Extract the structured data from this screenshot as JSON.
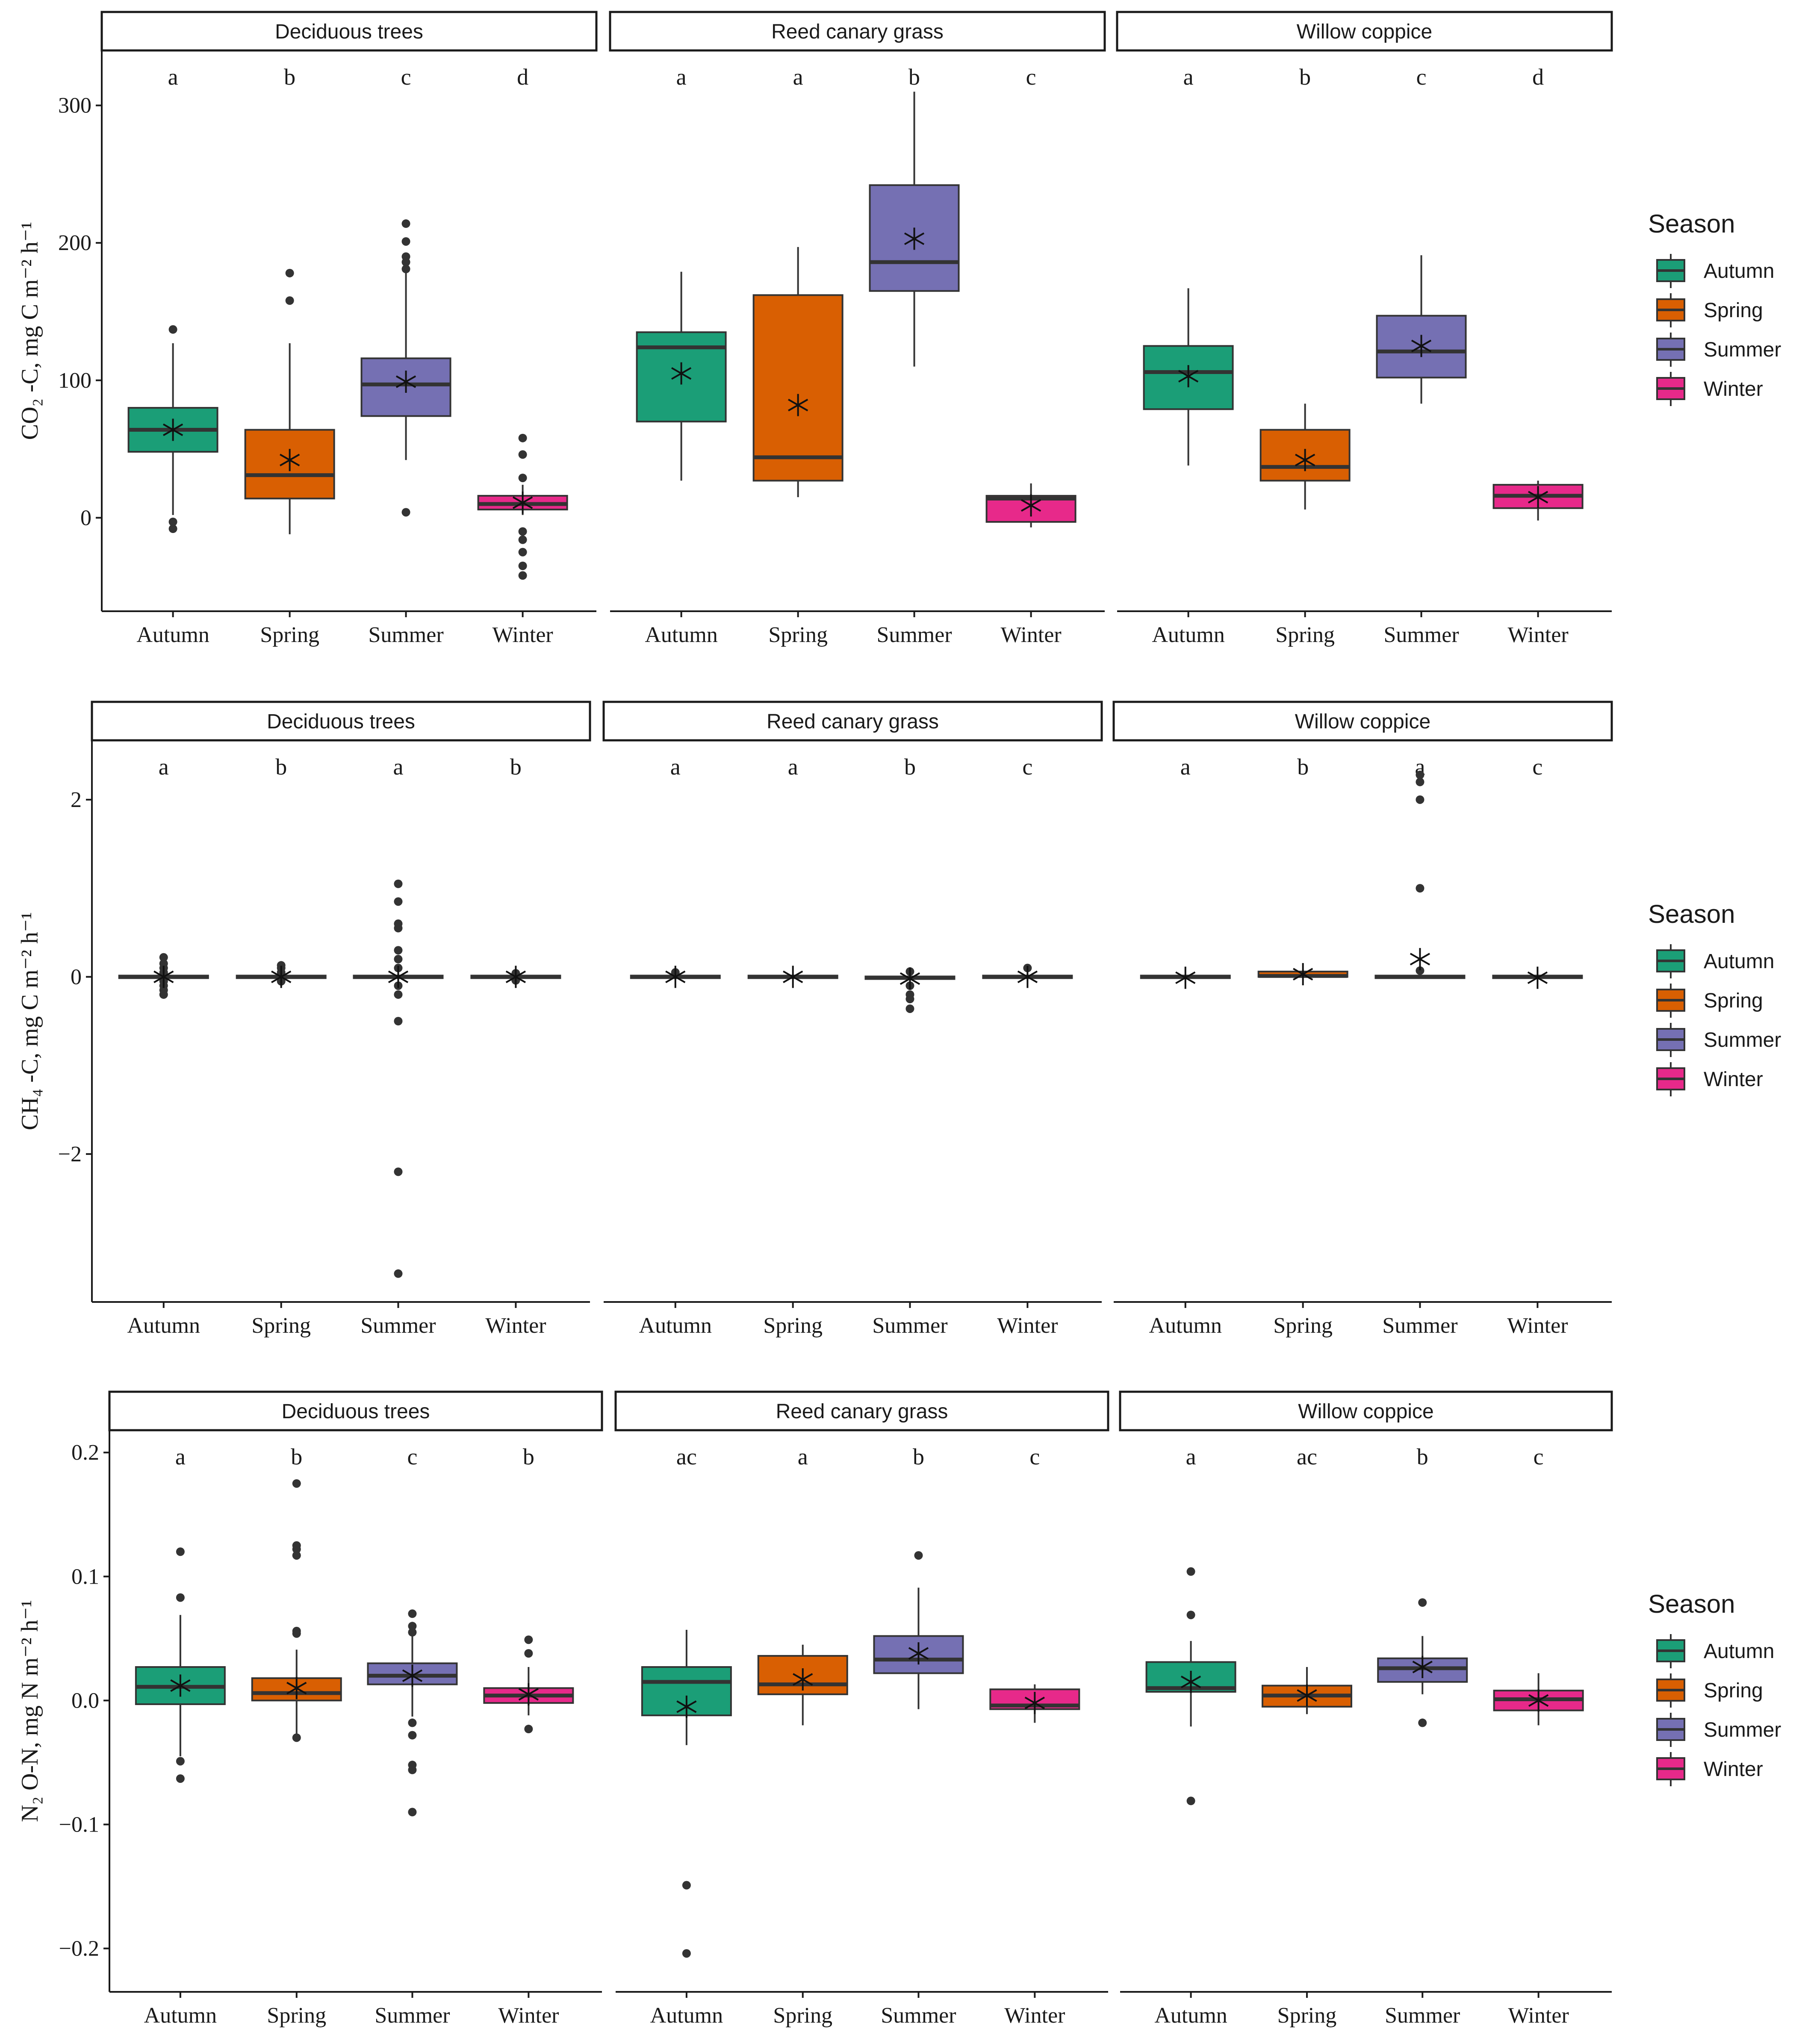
{
  "chart_data": [
    {
      "type": "box",
      "ylabel": "CO₂ -C, mg C m⁻² h⁻¹",
      "ylim": [
        -68,
        340
      ],
      "yticks": [
        0,
        100,
        200,
        300
      ],
      "ytick_labels": [
        "0",
        "100",
        "200",
        "300"
      ],
      "categories": [
        "Autumn",
        "Spring",
        "Summer",
        "Winter"
      ],
      "panels": [
        {
          "title": "Deciduous trees",
          "letters": [
            "a",
            "b",
            "c",
            "d"
          ],
          "boxes": [
            {
              "season": "Autumn",
              "q1": 48,
              "median": 64,
              "q3": 80,
              "whisker_low": 2,
              "whisker_high": 127,
              "mean": 64,
              "outliers": [
                -3,
                -8,
                137
              ]
            },
            {
              "season": "Spring",
              "q1": 14,
              "median": 31,
              "q3": 64,
              "whisker_low": -12,
              "whisker_high": 127,
              "mean": 42,
              "outliers": [
                158,
                178
              ]
            },
            {
              "season": "Summer",
              "q1": 74,
              "median": 97,
              "q3": 116,
              "whisker_low": 42,
              "whisker_high": 178,
              "mean": 99,
              "outliers": [
                4,
                181,
                186,
                190,
                201,
                214
              ]
            },
            {
              "season": "Winter",
              "q1": 6,
              "median": 10,
              "q3": 16,
              "whisker_low": 2,
              "whisker_high": 24,
              "mean": 11,
              "outliers": [
                -10,
                -16,
                -25,
                -35,
                -42,
                29,
                46,
                58
              ]
            }
          ]
        },
        {
          "title": "Reed canary grass",
          "letters": [
            "a",
            "a",
            "b",
            "c"
          ],
          "boxes": [
            {
              "season": "Autumn",
              "q1": 70,
              "median": 124,
              "q3": 135,
              "whisker_low": 27,
              "whisker_high": 179,
              "mean": 105,
              "outliers": []
            },
            {
              "season": "Spring",
              "q1": 27,
              "median": 44,
              "q3": 162,
              "whisker_low": 15,
              "whisker_high": 197,
              "mean": 82,
              "outliers": []
            },
            {
              "season": "Summer",
              "q1": 165,
              "median": 186,
              "q3": 242,
              "whisker_low": 110,
              "whisker_high": 310,
              "mean": 203,
              "outliers": []
            },
            {
              "season": "Winter",
              "q1": -3,
              "median": 14,
              "q3": 16,
              "whisker_low": -7,
              "whisker_high": 25,
              "mean": 9,
              "outliers": []
            }
          ]
        },
        {
          "title": "Willow coppice",
          "letters": [
            "a",
            "b",
            "c",
            "d"
          ],
          "boxes": [
            {
              "season": "Autumn",
              "q1": 79,
              "median": 106,
              "q3": 125,
              "whisker_low": 38,
              "whisker_high": 167,
              "mean": 103,
              "outliers": []
            },
            {
              "season": "Spring",
              "q1": 27,
              "median": 37,
              "q3": 64,
              "whisker_low": 6,
              "whisker_high": 83,
              "mean": 42,
              "outliers": []
            },
            {
              "season": "Summer",
              "q1": 102,
              "median": 121,
              "q3": 147,
              "whisker_low": 83,
              "whisker_high": 191,
              "mean": 125,
              "outliers": []
            },
            {
              "season": "Winter",
              "q1": 7,
              "median": 16,
              "q3": 24,
              "whisker_low": -2,
              "whisker_high": 27,
              "mean": 15,
              "outliers": []
            }
          ]
        }
      ]
    },
    {
      "type": "box",
      "ylabel": "CH₄ -C, mg C m⁻² h⁻¹",
      "ylim": [
        -3.67,
        2.67
      ],
      "yticks": [
        -2,
        0,
        2
      ],
      "ytick_labels": [
        "−2",
        "0",
        "2"
      ],
      "categories": [
        "Autumn",
        "Spring",
        "Summer",
        "Winter"
      ],
      "panels": [
        {
          "title": "Deciduous trees",
          "letters": [
            "a",
            "b",
            "a",
            "b"
          ],
          "boxes": [
            {
              "season": "Autumn",
              "q1": -0.01,
              "median": 0.0,
              "q3": 0.01,
              "whisker_low": -0.03,
              "whisker_high": 0.03,
              "mean": 0.0,
              "outliers": [
                -0.05,
                -0.1,
                -0.15,
                -0.2,
                0.05,
                0.1,
                0.15,
                0.22
              ]
            },
            {
              "season": "Spring",
              "q1": -0.01,
              "median": 0.0,
              "q3": 0.01,
              "whisker_low": -0.02,
              "whisker_high": 0.02,
              "mean": 0.0,
              "outliers": [
                -0.05,
                0.05,
                0.1,
                0.13
              ]
            },
            {
              "season": "Summer",
              "q1": -0.01,
              "median": 0.0,
              "q3": 0.01,
              "whisker_low": -0.03,
              "whisker_high": 0.03,
              "mean": 0.0,
              "outliers": [
                -0.1,
                -0.2,
                -0.5,
                -2.2,
                -3.35,
                0.1,
                0.2,
                0.3,
                0.55,
                0.6,
                0.85,
                1.05
              ]
            },
            {
              "season": "Winter",
              "q1": -0.01,
              "median": 0.0,
              "q3": 0.01,
              "whisker_low": -0.02,
              "whisker_high": 0.02,
              "mean": 0.0,
              "outliers": [
                -0.04,
                0.04
              ]
            }
          ]
        },
        {
          "title": "Reed canary grass",
          "letters": [
            "a",
            "a",
            "b",
            "c"
          ],
          "boxes": [
            {
              "season": "Autumn",
              "q1": -0.01,
              "median": 0.0,
              "q3": 0.01,
              "whisker_low": -0.02,
              "whisker_high": 0.02,
              "mean": 0.0,
              "outliers": [
                0.05
              ]
            },
            {
              "season": "Spring",
              "q1": -0.01,
              "median": 0.0,
              "q3": 0.01,
              "whisker_low": -0.02,
              "whisker_high": 0.02,
              "mean": 0.0,
              "outliers": []
            },
            {
              "season": "Summer",
              "q1": -0.02,
              "median": -0.01,
              "q3": 0.0,
              "whisker_low": -0.04,
              "whisker_high": 0.02,
              "mean": -0.02,
              "outliers": [
                -0.1,
                -0.2,
                -0.25,
                -0.36,
                0.06
              ]
            },
            {
              "season": "Winter",
              "q1": -0.01,
              "median": 0.0,
              "q3": 0.01,
              "whisker_low": -0.02,
              "whisker_high": 0.02,
              "mean": 0.0,
              "outliers": [
                0.1
              ]
            }
          ]
        },
        {
          "title": "Willow coppice",
          "letters": [
            "a",
            "b",
            "a",
            "c"
          ],
          "boxes": [
            {
              "season": "Autumn",
              "q1": -0.01,
              "median": 0.0,
              "q3": 0.01,
              "whisker_low": -0.02,
              "whisker_high": 0.02,
              "mean": -0.01,
              "outliers": []
            },
            {
              "season": "Spring",
              "q1": 0.0,
              "median": 0.01,
              "q3": 0.06,
              "whisker_low": -0.01,
              "whisker_high": 0.08,
              "mean": 0.03,
              "outliers": []
            },
            {
              "season": "Summer",
              "q1": -0.01,
              "median": 0.0,
              "q3": 0.01,
              "whisker_low": -0.02,
              "whisker_high": 0.02,
              "mean": 0.2,
              "outliers": [
                0.07,
                1.0,
                2.0,
                2.2,
                2.28
              ]
            },
            {
              "season": "Winter",
              "q1": -0.01,
              "median": 0.0,
              "q3": 0.01,
              "whisker_low": -0.02,
              "whisker_high": 0.02,
              "mean": -0.01,
              "outliers": []
            }
          ]
        }
      ]
    },
    {
      "type": "box",
      "ylabel": "N₂ O-N, mg N m⁻² h⁻¹",
      "ylim": [
        -0.235,
        0.218
      ],
      "yticks": [
        -0.2,
        -0.1,
        0.0,
        0.1,
        0.2
      ],
      "ytick_labels": [
        "−0.2",
        "−0.1",
        "0.0",
        "0.1",
        "0.2"
      ],
      "categories": [
        "Autumn",
        "Spring",
        "Summer",
        "Winter"
      ],
      "panels": [
        {
          "title": "Deciduous trees",
          "letters": [
            "a",
            "b",
            "c",
            "b"
          ],
          "boxes": [
            {
              "season": "Autumn",
              "q1": -0.003,
              "median": 0.011,
              "q3": 0.027,
              "whisker_low": -0.045,
              "whisker_high": 0.069,
              "mean": 0.012,
              "outliers": [
                -0.049,
                -0.063,
                0.083,
                0.12
              ]
            },
            {
              "season": "Spring",
              "q1": 0.0,
              "median": 0.006,
              "q3": 0.018,
              "whisker_low": -0.027,
              "whisker_high": 0.041,
              "mean": 0.01,
              "outliers": [
                -0.03,
                0.054,
                0.056,
                0.117,
                0.122,
                0.125,
                0.175
              ]
            },
            {
              "season": "Summer",
              "q1": 0.013,
              "median": 0.02,
              "q3": 0.03,
              "whisker_low": -0.013,
              "whisker_high": 0.053,
              "mean": 0.02,
              "outliers": [
                -0.018,
                -0.028,
                -0.052,
                -0.056,
                -0.09,
                0.055,
                0.06,
                0.07
              ]
            },
            {
              "season": "Winter",
              "q1": -0.002,
              "median": 0.004,
              "q3": 0.01,
              "whisker_low": -0.012,
              "whisker_high": 0.027,
              "mean": 0.005,
              "outliers": [
                -0.023,
                0.038,
                0.049
              ]
            }
          ]
        },
        {
          "title": "Reed canary grass",
          "letters": [
            "ac",
            "a",
            "b",
            "c"
          ],
          "boxes": [
            {
              "season": "Autumn",
              "q1": -0.012,
              "median": 0.015,
              "q3": 0.027,
              "whisker_low": -0.036,
              "whisker_high": 0.057,
              "mean": -0.005,
              "outliers": [
                -0.149,
                -0.204
              ]
            },
            {
              "season": "Spring",
              "q1": 0.005,
              "median": 0.013,
              "q3": 0.036,
              "whisker_low": -0.02,
              "whisker_high": 0.045,
              "mean": 0.017,
              "outliers": []
            },
            {
              "season": "Summer",
              "q1": 0.022,
              "median": 0.033,
              "q3": 0.052,
              "whisker_low": -0.007,
              "whisker_high": 0.091,
              "mean": 0.038,
              "outliers": [
                0.117
              ]
            },
            {
              "season": "Winter",
              "q1": -0.007,
              "median": -0.004,
              "q3": 0.009,
              "whisker_low": -0.018,
              "whisker_high": 0.013,
              "mean": -0.002,
              "outliers": []
            }
          ]
        },
        {
          "title": "Willow coppice",
          "letters": [
            "a",
            "ac",
            "b",
            "c"
          ],
          "boxes": [
            {
              "season": "Autumn",
              "q1": 0.007,
              "median": 0.01,
              "q3": 0.031,
              "whisker_low": -0.021,
              "whisker_high": 0.048,
              "mean": 0.015,
              "outliers": [
                -0.081,
                0.069,
                0.104
              ]
            },
            {
              "season": "Spring",
              "q1": -0.005,
              "median": 0.004,
              "q3": 0.012,
              "whisker_low": -0.011,
              "whisker_high": 0.027,
              "mean": 0.004,
              "outliers": []
            },
            {
              "season": "Summer",
              "q1": 0.015,
              "median": 0.026,
              "q3": 0.034,
              "whisker_low": 0.005,
              "whisker_high": 0.052,
              "mean": 0.027,
              "outliers": [
                -0.018,
                0.079
              ]
            },
            {
              "season": "Winter",
              "q1": -0.008,
              "median": 0.001,
              "q3": 0.008,
              "whisker_low": -0.02,
              "whisker_high": 0.022,
              "mean": 0.0,
              "outliers": []
            }
          ]
        }
      ]
    }
  ],
  "legend": {
    "title": "Season",
    "items": [
      {
        "label": "Autumn",
        "color": "#1b9e77"
      },
      {
        "label": "Spring",
        "color": "#d95f02"
      },
      {
        "label": "Summer",
        "color": "#7570b3"
      },
      {
        "label": "Winter",
        "color": "#e7298a"
      }
    ]
  }
}
